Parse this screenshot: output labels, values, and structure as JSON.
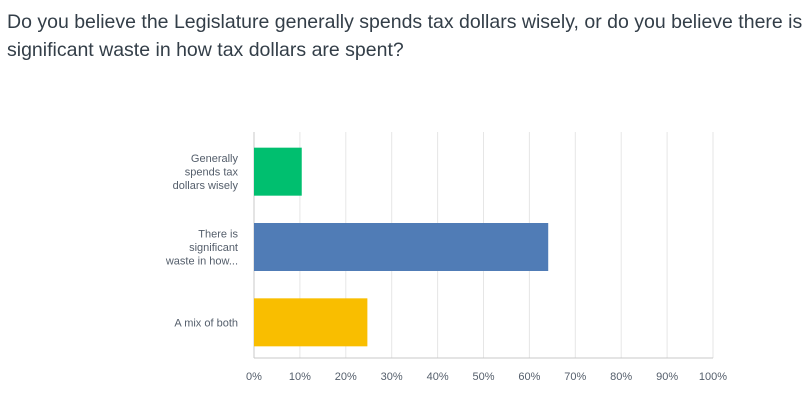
{
  "chart_data": {
    "type": "bar",
    "orientation": "horizontal",
    "title": "Do you believe the Legislature generally spends tax dollars wisely, or do you believe there is significant waste in how tax dollars are spent?",
    "categories": [
      [
        "Generally",
        "spends tax",
        "dollars wisely"
      ],
      [
        "There is",
        "significant",
        "waste in how..."
      ],
      [
        "A mix of both"
      ]
    ],
    "values": [
      10.4,
      64.1,
      24.7
    ],
    "colors": [
      "#00bf6f",
      "#507cb6",
      "#f9be00"
    ],
    "xlim": [
      0,
      100
    ],
    "xticks": [
      "0%",
      "10%",
      "20%",
      "30%",
      "40%",
      "50%",
      "60%",
      "70%",
      "80%",
      "90%",
      "100%"
    ],
    "grid": true,
    "xlabel": "",
    "ylabel": ""
  }
}
